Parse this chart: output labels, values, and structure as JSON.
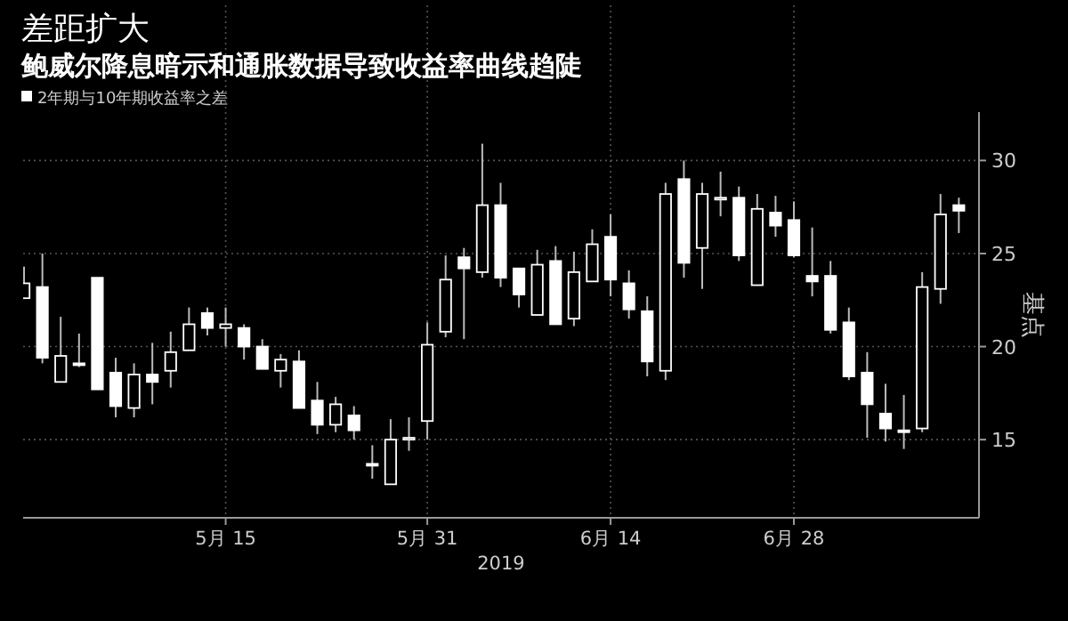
{
  "chart_data": {
    "type": "candlestick",
    "title": "差距扩大",
    "subtitle": "鲍威尔降息暗示和通胀数据导致收益率曲线趋陡",
    "xlabel": "2019",
    "ylabel": "基点",
    "categories": [
      null,
      null,
      null,
      null,
      null,
      null,
      null,
      null,
      null,
      null,
      null,
      "5月 15",
      null,
      null,
      null,
      null,
      null,
      null,
      null,
      null,
      null,
      null,
      "5月 31",
      null,
      null,
      null,
      null,
      null,
      null,
      null,
      null,
      null,
      "6月 14",
      null,
      null,
      null,
      null,
      null,
      null,
      null,
      null,
      null,
      "6月 28",
      null,
      null,
      null,
      null,
      null,
      null,
      null,
      null,
      null
    ],
    "series": [
      {
        "name": "2年期与10年期收益率之差",
        "color": "#ffffff",
        "ohlc": [
          [
            22.6,
            24.3,
            22.6,
            23.4
          ],
          [
            23.2,
            25.0,
            19.1,
            19.4
          ],
          [
            18.1,
            21.6,
            18.1,
            19.5
          ],
          [
            19.1,
            20.7,
            18.9,
            19.0
          ],
          [
            23.7,
            23.7,
            17.7,
            17.7
          ],
          [
            18.6,
            19.4,
            16.2,
            16.8
          ],
          [
            16.7,
            19.1,
            16.2,
            18.5
          ],
          [
            18.5,
            20.2,
            16.9,
            18.1
          ],
          [
            18.7,
            20.8,
            17.8,
            19.7
          ],
          [
            19.8,
            22.1,
            19.8,
            21.2
          ],
          [
            21.8,
            22.1,
            20.6,
            21.0
          ],
          [
            21.0,
            22.1,
            20.0,
            21.2
          ],
          [
            21.0,
            21.2,
            19.3,
            20.0
          ],
          [
            20.0,
            20.4,
            18.8,
            18.8
          ],
          [
            18.7,
            19.6,
            17.8,
            19.3
          ],
          [
            19.2,
            19.8,
            16.7,
            16.7
          ],
          [
            17.1,
            18.1,
            15.3,
            15.8
          ],
          [
            15.8,
            17.3,
            15.4,
            16.9
          ],
          [
            16.3,
            16.8,
            15.0,
            15.5
          ],
          [
            13.7,
            14.7,
            12.9,
            13.6
          ],
          [
            12.6,
            16.1,
            12.6,
            15.0
          ],
          [
            15.0,
            16.2,
            14.4,
            15.1
          ],
          [
            16.0,
            21.3,
            15.0,
            20.1
          ],
          [
            20.8,
            24.9,
            20.5,
            23.6
          ],
          [
            24.8,
            25.3,
            20.4,
            24.2
          ],
          [
            24.0,
            30.9,
            23.7,
            27.6
          ],
          [
            27.6,
            28.8,
            23.2,
            23.7
          ],
          [
            24.2,
            24.2,
            22.1,
            22.8
          ],
          [
            21.7,
            25.2,
            21.7,
            24.4
          ],
          [
            24.6,
            25.4,
            21.2,
            21.2
          ],
          [
            21.5,
            25.1,
            21.1,
            24.0
          ],
          [
            23.5,
            26.3,
            23.5,
            25.5
          ],
          [
            25.9,
            27.1,
            22.7,
            23.6
          ],
          [
            23.4,
            24.1,
            21.5,
            22.0
          ],
          [
            21.9,
            22.7,
            18.4,
            19.2
          ],
          [
            18.7,
            28.8,
            18.2,
            28.2
          ],
          [
            29.0,
            30.0,
            23.7,
            24.5
          ],
          [
            25.3,
            28.8,
            23.1,
            28.2
          ],
          [
            27.9,
            29.4,
            27.0,
            28.0
          ],
          [
            28.0,
            28.6,
            24.6,
            24.9
          ],
          [
            23.3,
            28.2,
            23.3,
            27.4
          ],
          [
            27.2,
            28.1,
            25.9,
            26.5
          ],
          [
            26.8,
            27.8,
            24.8,
            24.9
          ],
          [
            23.8,
            26.4,
            22.7,
            23.5
          ],
          [
            23.8,
            24.6,
            20.7,
            20.9
          ],
          [
            21.3,
            22.1,
            18.2,
            18.4
          ],
          [
            18.6,
            19.7,
            15.1,
            16.9
          ],
          [
            16.4,
            18.0,
            14.9,
            15.6
          ],
          [
            15.5,
            17.4,
            14.5,
            15.4
          ],
          [
            15.6,
            24.0,
            15.4,
            23.2
          ],
          [
            23.1,
            28.2,
            22.3,
            27.1
          ],
          [
            27.6,
            28.0,
            26.1,
            27.3
          ]
        ]
      }
    ],
    "ylim": [
      10.8,
      32.6
    ],
    "yticks": [
      15,
      20,
      25,
      30
    ],
    "grid": true,
    "legend": "top left"
  }
}
